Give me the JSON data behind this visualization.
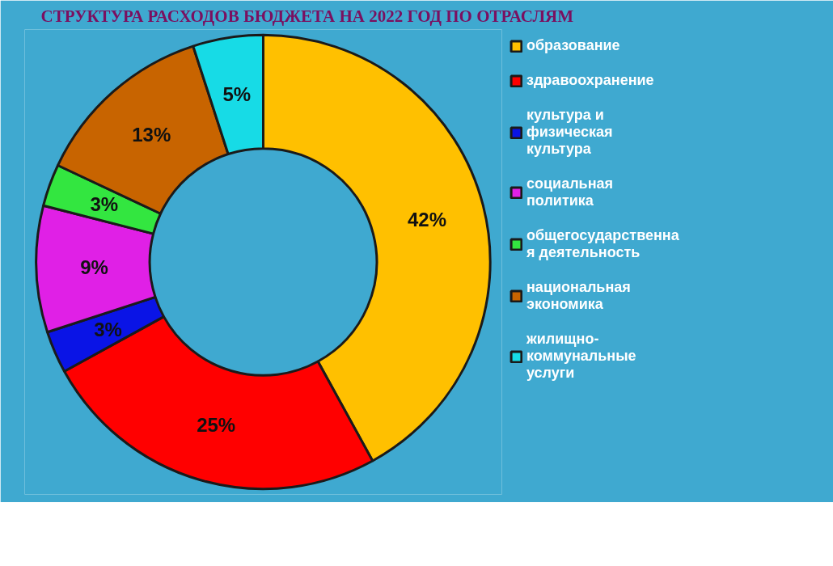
{
  "chart_data": {
    "type": "donut",
    "title": "СТРУКТУРА РАСХОДОВ БЮДЖЕТА НА 2022 ГОД ПО ОТРАСЛЯМ",
    "categories": [
      "образование",
      "здравоохранение",
      "культура и физическая культура",
      "социальная политика",
      "общегосударственная деятельность",
      "национальная экономика",
      "жилищно-коммунальные услуги"
    ],
    "values": [
      42,
      25,
      3,
      9,
      3,
      13,
      5
    ],
    "value_labels": [
      "42%",
      "25%",
      "3%",
      "9%",
      "3%",
      "13%",
      "5%"
    ],
    "colors": [
      "#ffc000",
      "#ff0000",
      "#0a14e6",
      "#e020e6",
      "#33e640",
      "#c86400",
      "#17dbe6"
    ],
    "legend": "right"
  }
}
